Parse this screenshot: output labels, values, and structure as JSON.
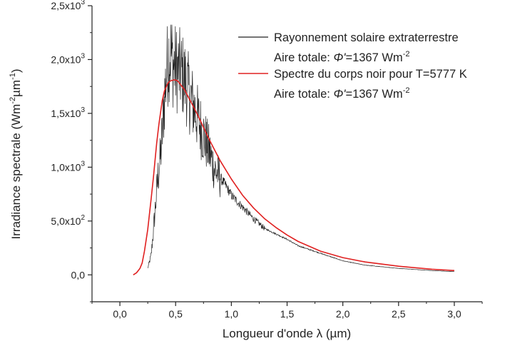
{
  "chart_data": {
    "type": "line",
    "xlabel": "Longueur d'onde λ (µm)",
    "ylabel": {
      "base": "Irradiance spectrale (Wm",
      "exp1": "-2",
      "mid": "µm",
      "exp2": "-1",
      "end": ")"
    },
    "xlim": [
      -0.25,
      3.25
    ],
    "ylim": [
      -250,
      2500
    ],
    "x_ticks": [
      0.0,
      0.5,
      1.0,
      1.5,
      2.0,
      2.5,
      3.0
    ],
    "x_tick_labels": [
      "0,0",
      "0,5",
      "1,0",
      "1,5",
      "2,0",
      "2,5",
      "3,0"
    ],
    "y_ticks": [
      {
        "value": 0,
        "mantissa": "0,0",
        "exp": ""
      },
      {
        "value": 500,
        "mantissa": "5,0x10",
        "exp": "2"
      },
      {
        "value": 1000,
        "mantissa": "1,0x10",
        "exp": "3"
      },
      {
        "value": 1500,
        "mantissa": "1,5x10",
        "exp": "3"
      },
      {
        "value": 2000,
        "mantissa": "2,0x10",
        "exp": "3"
      },
      {
        "value": 2500,
        "mantissa": "2,5x10",
        "exp": "3"
      }
    ],
    "grid": false,
    "legend_position": "top-right",
    "series": [
      {
        "name": "Rayonnement solaire extraterrestre",
        "color": "#222222",
        "style": "noisy",
        "x": [
          0.25,
          0.28,
          0.3,
          0.32,
          0.34,
          0.36,
          0.38,
          0.4,
          0.42,
          0.44,
          0.46,
          0.48,
          0.5,
          0.52,
          0.55,
          0.58,
          0.6,
          0.63,
          0.65,
          0.7,
          0.75,
          0.8,
          0.85,
          0.9,
          0.95,
          1.0,
          1.1,
          1.2,
          1.3,
          1.4,
          1.5,
          1.6,
          1.8,
          2.0,
          2.2,
          2.5,
          2.8,
          3.0
        ],
        "values": [
          60,
          180,
          400,
          650,
          900,
          1050,
          1300,
          1650,
          1900,
          2050,
          2050,
          1950,
          1920,
          1900,
          1880,
          1820,
          1750,
          1650,
          1600,
          1450,
          1300,
          1150,
          980,
          900,
          830,
          740,
          630,
          520,
          430,
          380,
          330,
          270,
          200,
          130,
          90,
          60,
          40,
          30
        ]
      },
      {
        "name": "Spectre du corps noir pour T=5777 K",
        "color": "#e02020",
        "style": "smooth",
        "x": [
          0.12,
          0.15,
          0.18,
          0.2,
          0.22,
          0.25,
          0.28,
          0.3,
          0.33,
          0.35,
          0.38,
          0.4,
          0.43,
          0.45,
          0.48,
          0.5,
          0.52,
          0.55,
          0.58,
          0.6,
          0.65,
          0.7,
          0.75,
          0.8,
          0.85,
          0.9,
          1.0,
          1.1,
          1.2,
          1.3,
          1.4,
          1.5,
          1.6,
          1.8,
          2.0,
          2.2,
          2.5,
          2.8,
          3.0
        ],
        "values": [
          0,
          20,
          60,
          110,
          220,
          420,
          700,
          900,
          1220,
          1400,
          1620,
          1710,
          1780,
          1800,
          1810,
          1810,
          1800,
          1760,
          1720,
          1680,
          1580,
          1480,
          1370,
          1260,
          1160,
          1060,
          890,
          740,
          620,
          520,
          440,
          370,
          310,
          220,
          160,
          120,
          80,
          52,
          40
        ]
      }
    ],
    "legend": [
      {
        "label": "Rayonnement solaire extraterrestre",
        "color": "#222222"
      },
      {
        "label": "Spectre du corps noir pour T=5777 K",
        "color": "#e02020"
      }
    ],
    "annotations": [
      {
        "prefix": "Aire totale: ",
        "symbol": "Φ'",
        "value": "=1367 Wm",
        "exp": "-2"
      },
      {
        "prefix": "Aire totale: ",
        "symbol": "Φ'",
        "value": "=1367 Wm",
        "exp": "-2"
      }
    ]
  }
}
